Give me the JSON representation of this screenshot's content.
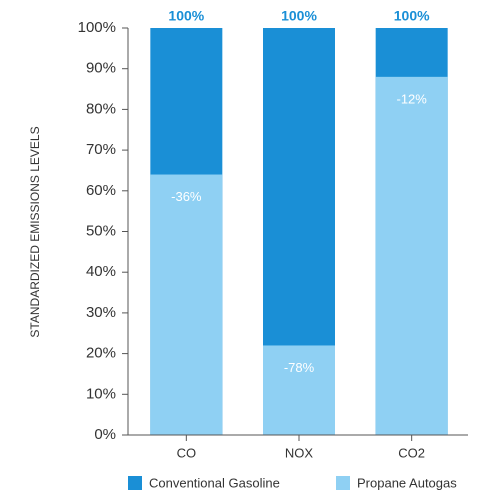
{
  "chart_data": {
    "type": "overlap-bar",
    "y_label": "STANDARDIZED EMISSIONS LEVELS",
    "categories": [
      "CO",
      "NOX",
      "CO2"
    ],
    "series": [
      {
        "name": "Conventional Gasoline",
        "color": "#1a8fd6",
        "values": [
          100,
          100,
          100
        ],
        "value_labels": [
          "100%",
          "100%",
          "100%"
        ]
      },
      {
        "name": "Propane Autogas",
        "color": "#8fd0f3",
        "values": [
          64,
          22,
          88
        ]
      }
    ],
    "annotations": [
      "-36%",
      "-78%",
      "-12%"
    ],
    "ylim": [
      0,
      100
    ],
    "yticks": [
      {
        "value": 0,
        "label": "0%"
      },
      {
        "value": 10,
        "label": "10%"
      },
      {
        "value": 20,
        "label": "20%"
      },
      {
        "value": 30,
        "label": "30%"
      },
      {
        "value": 40,
        "label": "40%"
      },
      {
        "value": 50,
        "label": "50%"
      },
      {
        "value": 60,
        "label": "60%"
      },
      {
        "value": 70,
        "label": "70%"
      },
      {
        "value": 80,
        "label": "80%"
      },
      {
        "value": 90,
        "label": "90%"
      },
      {
        "value": 100,
        "label": "100%"
      }
    ],
    "legend": "bottom"
  }
}
